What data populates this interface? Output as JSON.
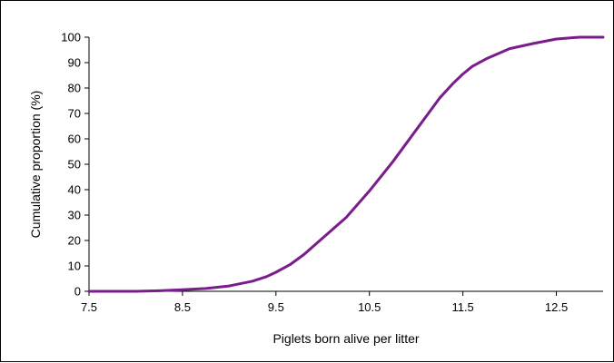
{
  "chart_data": {
    "type": "line",
    "title": "",
    "xlabel": "Piglets born alive per litter",
    "ylabel": "Cumulative proportion (%)",
    "xlim": [
      7.5,
      13.0
    ],
    "ylim": [
      0,
      100
    ],
    "x_ticks": [
      7.5,
      8.5,
      9.5,
      10.5,
      11.5,
      12.5
    ],
    "x_tick_labels": [
      "7.5",
      "8.5",
      "9.5",
      "10.5",
      "11.5",
      "12.5"
    ],
    "y_ticks": [
      0,
      10,
      20,
      30,
      40,
      50,
      60,
      70,
      80,
      90,
      100
    ],
    "y_tick_labels": [
      "0",
      "10",
      "20",
      "30",
      "40",
      "50",
      "60",
      "70",
      "80",
      "90",
      "100"
    ],
    "grid": false,
    "legend": "none",
    "series": [
      {
        "color": "#7B1C8C",
        "x": [
          7.5,
          8.0,
          8.25,
          8.5,
          8.75,
          9.0,
          9.25,
          9.4,
          9.5,
          9.65,
          9.8,
          10.0,
          10.25,
          10.5,
          10.75,
          11.0,
          11.1,
          11.25,
          11.4,
          11.5,
          11.6,
          11.75,
          12.0,
          12.25,
          12.5,
          12.75,
          13.0
        ],
        "y": [
          0,
          0,
          0.2,
          0.6,
          1.1,
          2.1,
          4.0,
          5.8,
          7.5,
          10.5,
          14.5,
          21.0,
          29.0,
          39.5,
          51.0,
          63.5,
          68.5,
          76.0,
          82.0,
          85.5,
          88.5,
          91.5,
          95.5,
          97.5,
          99.3,
          100,
          100
        ]
      }
    ]
  }
}
